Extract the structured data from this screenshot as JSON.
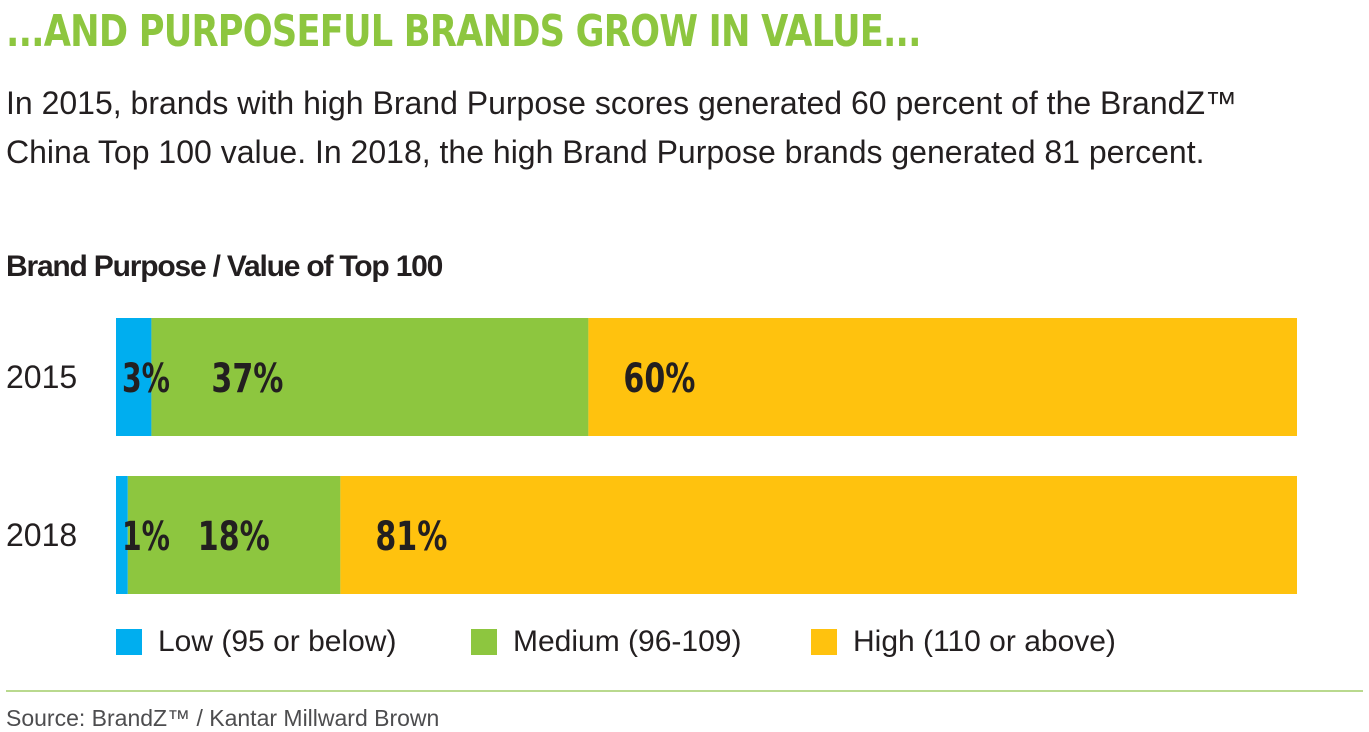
{
  "headline": "...AND PURPOSEFUL BRANDS GROW IN VALUE...",
  "intro": "In 2015, brands with high Brand Purpose scores generated 60 percent of the BrandZ™ China Top 100 value. In 2018, the high Brand Purpose brands generated 81 percent.",
  "source": "Source: BrandZ™ / Kantar Millward Brown",
  "colors": {
    "accent": "#8dc63f",
    "low": "#00aeef",
    "medium": "#8dc63f",
    "high": "#ffc20e"
  },
  "chart_data": {
    "type": "bar",
    "orientation": "horizontal",
    "stacked": true,
    "title": "Brand Purpose / Value of Top 100",
    "categories": [
      "2015",
      "2018"
    ],
    "series": [
      {
        "name": "Low (95 or below)",
        "values": [
          3,
          1
        ],
        "labels": [
          "3%",
          "1%"
        ],
        "color": "#00aeef"
      },
      {
        "name": "Medium (96-109)",
        "values": [
          37,
          18
        ],
        "labels": [
          "37%",
          "18%"
        ],
        "color": "#8dc63f"
      },
      {
        "name": "High (110 or above)",
        "values": [
          60,
          81
        ],
        "labels": [
          "60%",
          "81%"
        ],
        "color": "#ffc20e"
      }
    ],
    "xlim": [
      0,
      100
    ],
    "grid": false,
    "legend": "bottom"
  }
}
